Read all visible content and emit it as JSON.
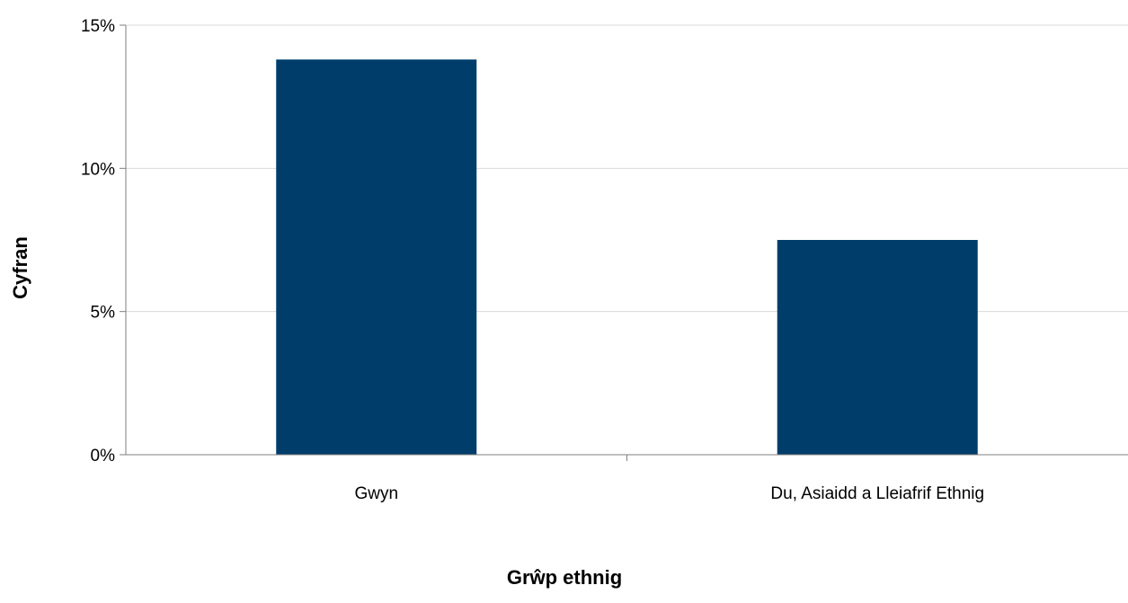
{
  "chart_data": {
    "type": "bar",
    "title": "",
    "xlabel": "Grŵp ethnig",
    "ylabel": "Cyfran",
    "categories": [
      "Gwyn",
      "Du, Asiaidd a Lleiafrif Ethnig"
    ],
    "series": [
      {
        "values": [
          13.8,
          7.5
        ]
      }
    ],
    "ylim": [
      0,
      15
    ],
    "yticks": [
      0,
      5,
      10,
      15
    ],
    "ytick_labels": [
      "0%",
      "5%",
      "10%",
      "15%"
    ],
    "grid": true,
    "legend": "none",
    "colors": {
      "bar": "#003d6b",
      "grid": "#d9d9d9",
      "axis": "#7f7f7f"
    }
  }
}
